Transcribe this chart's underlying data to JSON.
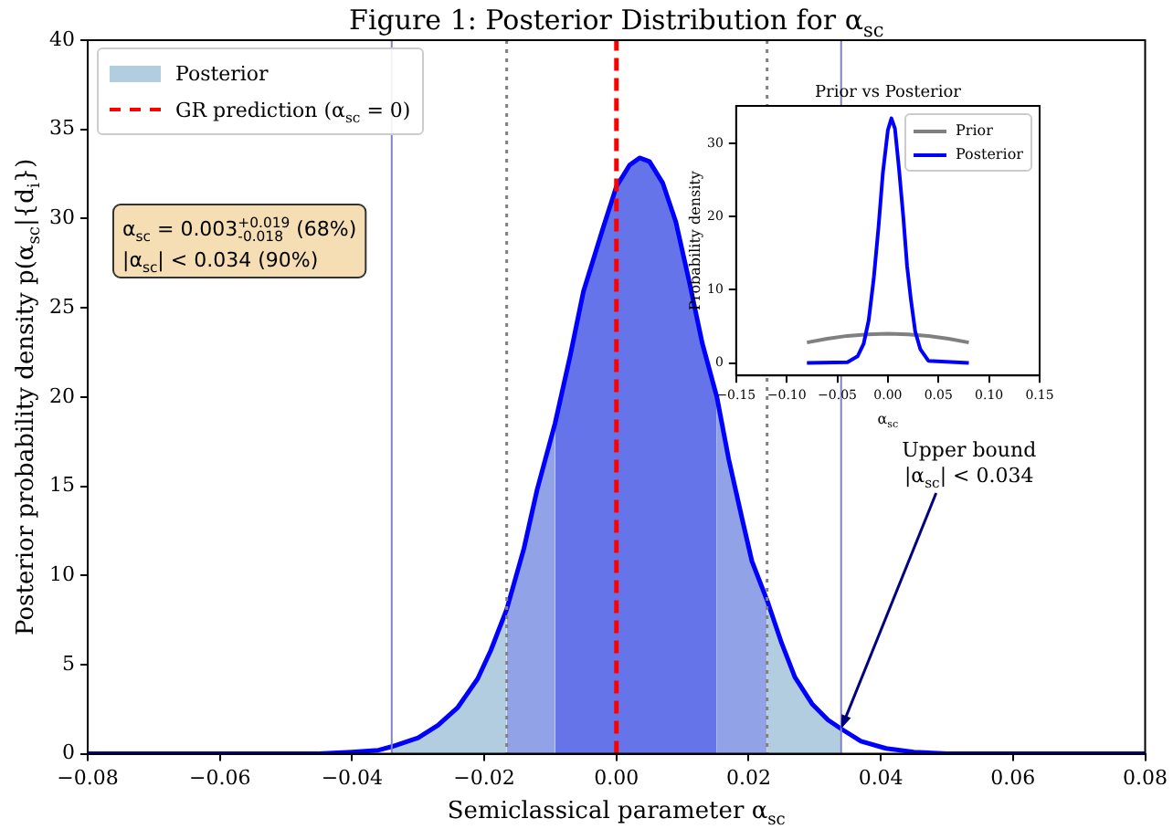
{
  "chart_data": [
    {
      "type": "line",
      "title": "Figure 1: Posterior Distribution for α$_{sc}$",
      "xlabel": "Semiclassical parameter α$_{sc}$",
      "ylabel": "Posterior probability density p(α$_{sc}$|{d$_{i}$})",
      "series": [
        {
          "color": "#0000ff",
          "x": [
            -0.08,
            -0.06,
            -0.05,
            -0.045,
            -0.04,
            -0.036,
            -0.034,
            -0.03,
            -0.027,
            -0.024,
            -0.021,
            -0.019,
            -0.0166,
            -0.014,
            -0.012,
            -0.0093,
            -0.007,
            -0.005,
            -0.002,
            0,
            0.002,
            0.0035,
            0.005,
            0.007,
            0.009,
            0.011,
            0.013,
            0.0152,
            0.017,
            0.019,
            0.0205,
            0.0228,
            0.025,
            0.027,
            0.0296,
            0.032,
            0.034,
            0.037,
            0.0408,
            0.045,
            0.05,
            0.06,
            0.08
          ],
          "values": [
            0,
            0,
            0,
            0,
            0.1,
            0.2,
            0.4,
            0.9,
            1.6,
            2.6,
            4.2,
            5.8,
            8.1,
            11.5,
            14.8,
            18.5,
            22.3,
            25.9,
            29.5,
            31.8,
            33.0,
            33.4,
            33.2,
            32.0,
            29.8,
            26.5,
            23.0,
            20.0,
            16.5,
            13.2,
            10.8,
            8.6,
            6.2,
            4.3,
            2.8,
            1.9,
            1.4,
            0.7,
            0.3,
            0.1,
            0,
            0,
            0
          ]
        },
        {
          "type": "area",
          "name": "Posterior",
          "color": "#b3cde0",
          "x": [
            -0.034,
            -0.03,
            -0.027,
            -0.024,
            -0.021,
            -0.019,
            -0.0166,
            0,
            0.0228,
            0.025,
            0.027,
            0.0296,
            0.032,
            0.034
          ],
          "values": [
            0.4,
            0.9,
            1.6,
            2.6,
            4.2,
            5.8,
            8.1,
            null,
            8.6,
            6.2,
            4.3,
            2.8,
            1.9,
            1.4
          ]
        },
        {
          "type": "area",
          "color": "#91a3e6",
          "x": [
            -0.0166,
            -0.014,
            -0.012,
            -0.0093,
            0,
            0.0152,
            0.017,
            0.019,
            0.0205,
            0.0228
          ],
          "values": [
            8.1,
            11.5,
            14.8,
            18.5,
            null,
            20.0,
            16.5,
            13.2,
            10.8,
            8.6
          ]
        },
        {
          "type": "area",
          "color": "#6674ea",
          "x": [
            -0.0093,
            -0.007,
            -0.005,
            -0.002,
            0,
            0.002,
            0.0035,
            0.005,
            0.007,
            0.009,
            0.011,
            0.013,
            0.0152
          ],
          "values": [
            18.5,
            22.3,
            25.9,
            29.5,
            31.8,
            33.0,
            33.4,
            33.2,
            32.0,
            29.8,
            26.5,
            23.0,
            20.0
          ]
        },
        {
          "type": "line",
          "name": "GR prediction (α$_{sc}$ = 0)",
          "color": "#ff0000",
          "line_style": "dashed",
          "x": [
            0,
            0
          ],
          "values": [
            0,
            40
          ]
        }
      ],
      "ref_lines": [
        {
          "axis": "x",
          "value": -0.0166,
          "color": "#808080",
          "line_style": "dotted"
        },
        {
          "axis": "x",
          "value": 0.0228,
          "color": "#808080",
          "line_style": "dotted"
        },
        {
          "axis": "x",
          "value": -0.034,
          "color": "#8080cc",
          "line_style": "solid"
        },
        {
          "axis": "x",
          "value": 0.034,
          "color": "#8080cc",
          "line_style": "solid"
        }
      ],
      "annotations": [
        "α$_{sc}$ = 0.003$^{+0.019}$$_{-0.018}$ (68%)\n|α$_{sc}$| < 0.034 (90%)",
        {
          "text": "Upper bound\n|α$_{sc}$| < 0.034",
          "x": 0.034,
          "y": 1.4
        }
      ],
      "xlim": [
        -0.08,
        0.08
      ],
      "xticks": [
        {
          "value": -0.08,
          "label": "−0.08"
        },
        {
          "value": -0.06,
          "label": "−0.06"
        },
        {
          "value": -0.04,
          "label": "−0.04"
        },
        {
          "value": -0.02,
          "label": "−0.02"
        },
        {
          "value": 0,
          "label": "0.00"
        },
        {
          "value": 0.02,
          "label": "0.02"
        },
        {
          "value": 0.04,
          "label": "0.04"
        },
        {
          "value": 0.06,
          "label": "0.06"
        },
        {
          "value": 0.08,
          "label": "0.08"
        }
      ],
      "ylim": [
        0,
        40
      ],
      "yticks": [
        0,
        5,
        10,
        15,
        20,
        25,
        30,
        35,
        40
      ],
      "grid": false,
      "legend": "top left"
    },
    {
      "type": "line",
      "title": "Prior vs Posterior",
      "xlabel": "α$_{sc}$",
      "ylabel": "Probability density",
      "series": [
        {
          "name": "Prior",
          "color": "#808080",
          "x": [
            -0.08,
            -0.06,
            -0.04,
            -0.02,
            0,
            0.02,
            0.04,
            0.06,
            0.08
          ],
          "values": [
            2.8,
            3.3,
            3.7,
            3.9,
            4.0,
            3.9,
            3.7,
            3.3,
            2.8
          ]
        },
        {
          "name": "Posterior",
          "color": "#0000ff",
          "x": [
            -0.08,
            -0.04,
            -0.03,
            -0.024,
            -0.019,
            -0.014,
            -0.0093,
            -0.005,
            0,
            0.0035,
            0.007,
            0.011,
            0.0152,
            0.019,
            0.0228,
            0.027,
            0.032,
            0.04,
            0.08
          ],
          "values": [
            0,
            0.1,
            0.9,
            2.6,
            5.8,
            11.5,
            18.5,
            25.9,
            31.8,
            33.4,
            32.0,
            26.5,
            20.0,
            13.2,
            8.6,
            4.3,
            1.9,
            0.3,
            0
          ]
        }
      ],
      "xlim": [
        -0.15,
        0.15
      ],
      "xticks": [
        {
          "value": -0.15,
          "label": "−0.15"
        },
        {
          "value": -0.1,
          "label": "−0.10"
        },
        {
          "value": -0.05,
          "label": "−0.05"
        },
        {
          "value": 0,
          "label": "0.00"
        },
        {
          "value": 0.05,
          "label": "0.05"
        },
        {
          "value": 0.1,
          "label": "0.10"
        },
        {
          "value": 0.15,
          "label": "0.15"
        }
      ],
      "ylim": [
        -1.7,
        35.1
      ],
      "yticks": [
        0,
        10,
        20,
        30
      ],
      "grid": false,
      "legend": "top right"
    }
  ]
}
